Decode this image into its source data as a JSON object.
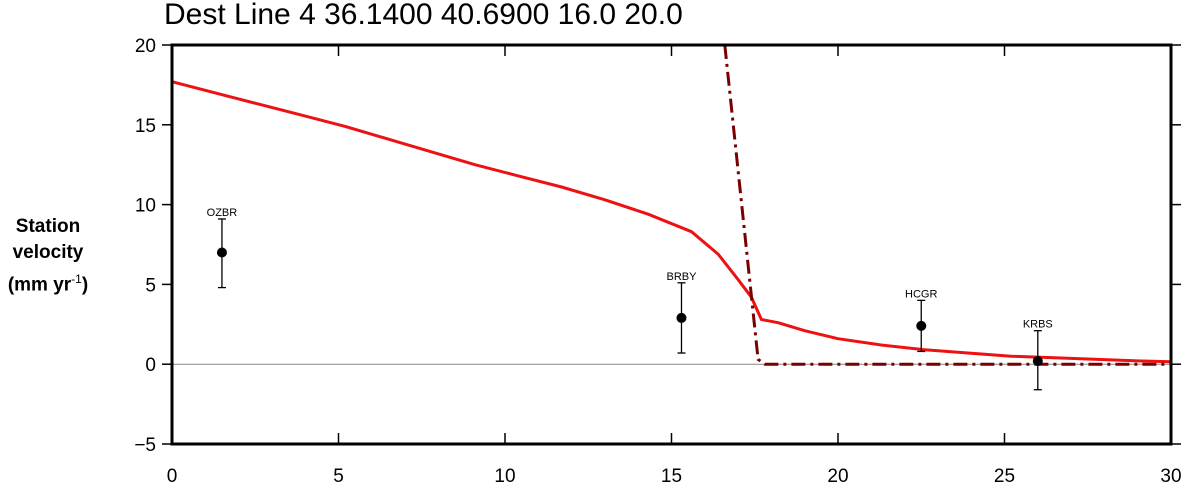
{
  "chart_data": {
    "type": "line",
    "title": "Dest Line 4 36.1400 40.6900 16.0 20.0",
    "ylabel": {
      "line1": "Station",
      "line2": "velocity",
      "line3_prefix": "(mm yr",
      "line3_sup": "-1",
      "line3_suffix": ")"
    },
    "xlim": [
      0,
      30
    ],
    "ylim": [
      -5,
      20
    ],
    "x_ticks": [
      0,
      5,
      10,
      15,
      20,
      25,
      30
    ],
    "y_ticks": [
      20,
      15,
      10,
      5,
      0,
      -5
    ],
    "y_tick_labels": [
      "20",
      "15",
      "10",
      "5",
      "0",
      "−5"
    ],
    "zero_line": true,
    "series": [
      {
        "style": "solid",
        "color": "#ee1111",
        "x": [
          0,
          1.3,
          2.6,
          3.9,
          5.2,
          6.5,
          7.8,
          9.1,
          10.4,
          11.7,
          13.0,
          14.3,
          15.6,
          16.4,
          17.0,
          17.4,
          17.7,
          18.2,
          19.0,
          20.0,
          21.3,
          22.6,
          23.9,
          25.2,
          26.5,
          27.8,
          29.1,
          30.0
        ],
        "y": [
          17.7,
          17.0,
          16.3,
          15.6,
          14.9,
          14.1,
          13.3,
          12.5,
          11.8,
          11.1,
          10.3,
          9.4,
          8.3,
          6.9,
          5.3,
          4.2,
          2.8,
          2.6,
          2.1,
          1.6,
          1.2,
          0.9,
          0.7,
          0.5,
          0.4,
          0.3,
          0.2,
          0.15
        ]
      },
      {
        "style": "dashdot",
        "color": "#7a0000",
        "x": [
          16.6,
          17.6,
          17.8,
          30.0
        ],
        "y": [
          20,
          0.3,
          0,
          0
        ]
      }
    ],
    "stations": [
      {
        "name": "OZBR",
        "x": 1.5,
        "y": 7.0,
        "err_lo": 4.8,
        "err_hi": 9.1
      },
      {
        "name": "BRBY",
        "x": 15.3,
        "y": 2.9,
        "err_lo": 0.7,
        "err_hi": 5.1
      },
      {
        "name": "HCGR",
        "x": 22.5,
        "y": 2.4,
        "err_lo": 0.8,
        "err_hi": 4.0
      },
      {
        "name": "KRBS",
        "x": 26.0,
        "y": 0.2,
        "err_lo": -1.6,
        "err_hi": 2.1
      }
    ]
  }
}
